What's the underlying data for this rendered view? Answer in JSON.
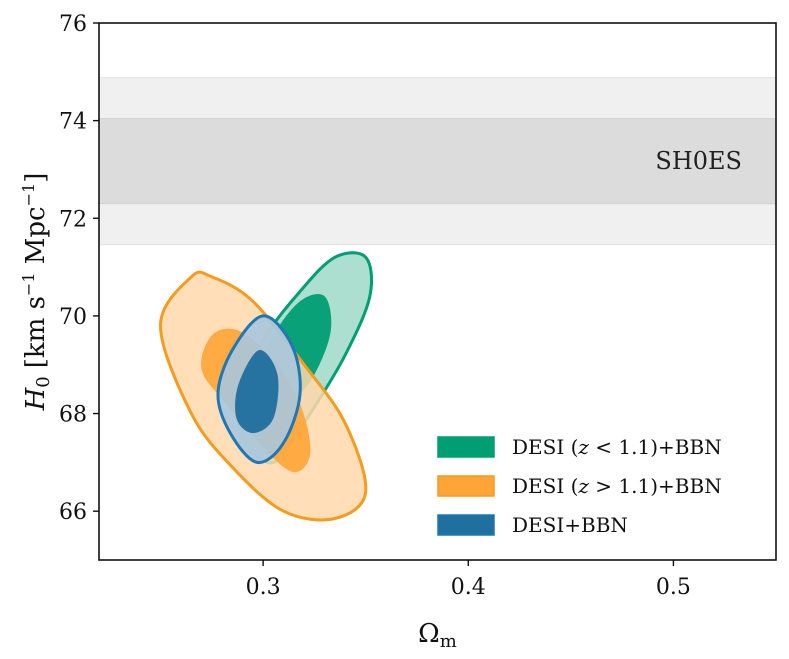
{
  "chart_data": {
    "type": "contour",
    "xlabel": "Ω",
    "xlabel_sub": "m",
    "ylabel_main": "H",
    "ylabel_sub": "0",
    "ylabel_units": "[km s",
    "ylabel_units_exp1": "−1",
    "ylabel_units_mid": " Mpc",
    "ylabel_units_exp2": "−1",
    "ylabel_units_end": "]",
    "xlim": [
      0.22,
      0.55
    ],
    "ylim": [
      65,
      76
    ],
    "x_ticks": [
      0.3,
      0.4,
      0.5
    ],
    "x_tick_labels": [
      "0.3",
      "0.4",
      "0.5"
    ],
    "y_ticks": [
      66,
      68,
      70,
      72,
      74,
      76
    ],
    "y_tick_labels": [
      "66",
      "68",
      "70",
      "72",
      "74",
      "76"
    ],
    "grid": false,
    "legend_position": "bottom-right",
    "band": {
      "label": "SH0ES",
      "inner": [
        72.3,
        74.04
      ],
      "outer": [
        71.46,
        74.88
      ],
      "inner_color": "#dcdcdc",
      "outer_color": "#f0f0f0"
    },
    "series": [
      {
        "name": "DESI (z < 1.1)+BBN",
        "legend_parts": [
          "DESI (",
          "z",
          " < 1.1)+BBN"
        ],
        "color": "#009e73",
        "fill_1sigma": "#009e73",
        "fill_2sigma": "#a3dccb",
        "contours_2sigma": [
          [
            0.302,
            67.0
          ],
          [
            0.29,
            67.5
          ],
          [
            0.29,
            68.4
          ],
          [
            0.3,
            69.5
          ],
          [
            0.318,
            70.5
          ],
          [
            0.335,
            71.2
          ],
          [
            0.35,
            71.2
          ],
          [
            0.352,
            70.4
          ],
          [
            0.34,
            69.2
          ],
          [
            0.323,
            68.0
          ],
          [
            0.31,
            67.2
          ]
        ],
        "contours_1sigma": [
          [
            0.305,
            68.2
          ],
          [
            0.298,
            68.8
          ],
          [
            0.305,
            69.6
          ],
          [
            0.318,
            70.3
          ],
          [
            0.33,
            70.4
          ],
          [
            0.333,
            69.7
          ],
          [
            0.325,
            68.8
          ],
          [
            0.313,
            68.2
          ]
        ]
      },
      {
        "name": "DESI (z > 1.1)+BBN",
        "legend_parts": [
          "DESI (",
          "z",
          " > 1.1)+BBN"
        ],
        "color": "#f39c1e",
        "fill_1sigma": "#ffa436",
        "fill_2sigma": "#ffd8ab",
        "contours_2sigma": [
          [
            0.265,
            70.8
          ],
          [
            0.25,
            69.8
          ],
          [
            0.265,
            68.0
          ],
          [
            0.285,
            66.9
          ],
          [
            0.31,
            66.0
          ],
          [
            0.335,
            65.85
          ],
          [
            0.35,
            66.4
          ],
          [
            0.34,
            67.8
          ],
          [
            0.32,
            69.0
          ],
          [
            0.295,
            70.3
          ],
          [
            0.275,
            70.8
          ]
        ],
        "contours_1sigma": [
          [
            0.275,
            69.6
          ],
          [
            0.27,
            68.9
          ],
          [
            0.282,
            68.2
          ],
          [
            0.3,
            67.3
          ],
          [
            0.315,
            66.8
          ],
          [
            0.323,
            67.2
          ],
          [
            0.318,
            68.2
          ],
          [
            0.305,
            69.1
          ],
          [
            0.288,
            69.7
          ]
        ],
        "contours_note": ""
      },
      {
        "name": "DESI+BBN",
        "legend_parts": [
          "DESI+BBN"
        ],
        "color": "#1f77b4",
        "fill_1sigma": "#1f6f9f",
        "fill_2sigma": "#a8c6de",
        "contours_2sigma": [
          [
            0.3,
            70.0
          ],
          [
            0.285,
            69.3
          ],
          [
            0.278,
            68.4
          ],
          [
            0.284,
            67.6
          ],
          [
            0.297,
            67.0
          ],
          [
            0.31,
            67.4
          ],
          [
            0.318,
            68.4
          ],
          [
            0.314,
            69.4
          ]
        ],
        "contours_1sigma": [
          [
            0.298,
            69.3
          ],
          [
            0.288,
            68.6
          ],
          [
            0.287,
            67.9
          ],
          [
            0.295,
            67.6
          ],
          [
            0.305,
            67.9
          ],
          [
            0.307,
            68.8
          ]
        ]
      }
    ]
  }
}
